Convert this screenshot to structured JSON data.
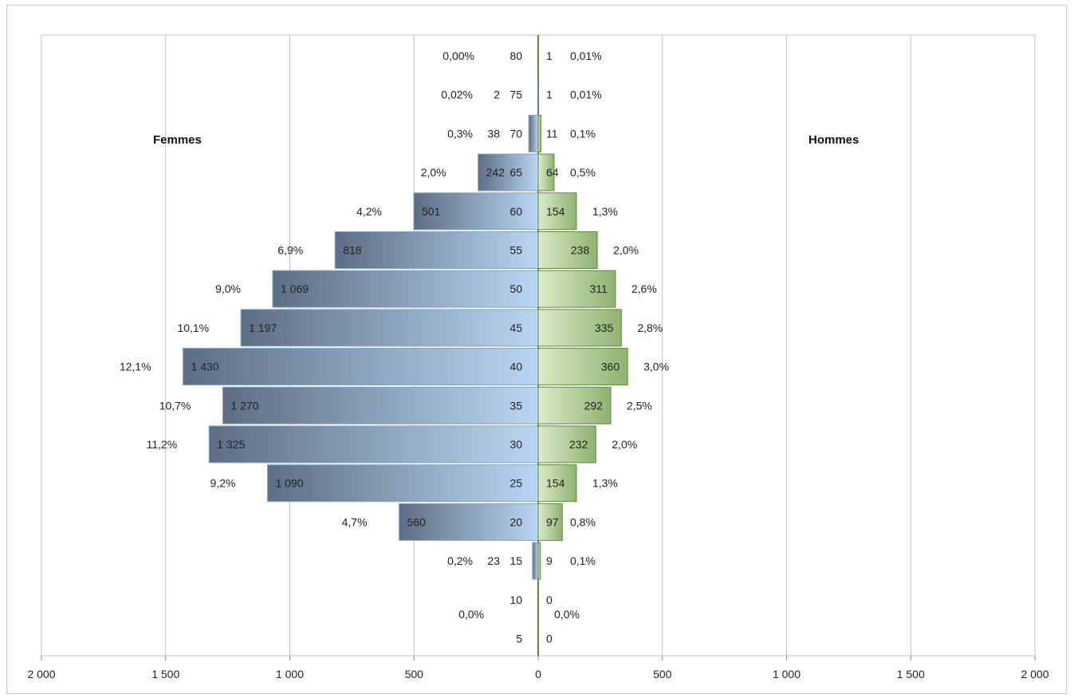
{
  "chart_data": {
    "type": "bar",
    "orientation": "horizontal-population-pyramid",
    "title": "",
    "labels": {
      "left": "Femmes",
      "right": "Hommes"
    },
    "xlim": [
      -2000,
      2000
    ],
    "x_ticks": [
      "2 000",
      "1 500",
      "1 000",
      "500",
      "0",
      "500",
      "1 000",
      "1 500",
      "2 000"
    ],
    "grid": true,
    "colors": {
      "femmes": "#a9c7e6",
      "femmes_dark": "#5d6d84",
      "hommes": "#cfe3b4",
      "hommes_dark": "#8fb270",
      "hommes_border": "#5e8a3c",
      "grid": "#c0c0c0"
    },
    "categories": [
      "80",
      "75",
      "70",
      "65",
      "60",
      "55",
      "50",
      "45",
      "40",
      "35",
      "30",
      "25",
      "20",
      "15",
      "10",
      "5"
    ],
    "series": [
      {
        "name": "Femmes",
        "values": [
          0,
          2,
          38,
          242,
          501,
          818,
          1069,
          1197,
          1430,
          1270,
          1325,
          1090,
          560,
          23,
          0,
          0
        ],
        "value_labels": [
          "",
          "2",
          "38",
          "242",
          "501",
          "818",
          "1 069",
          "1 197",
          "1 430",
          "1 270",
          "1 325",
          "1 090",
          "560",
          "23",
          "",
          ""
        ],
        "pct_labels": [
          "0,00%",
          "0,02%",
          "0,3%",
          "2,0%",
          "4,2%",
          "6,9%",
          "9,0%",
          "10,1%",
          "12,1%",
          "10,7%",
          "11,2%",
          "9,2%",
          "4,7%",
          "0,2%",
          "0,0%",
          ""
        ]
      },
      {
        "name": "Hommes",
        "values": [
          1,
          1,
          11,
          64,
          154,
          238,
          311,
          335,
          360,
          292,
          232,
          154,
          97,
          9,
          0,
          0
        ],
        "value_labels": [
          "1",
          "1",
          "11",
          "64",
          "154",
          "238",
          "311",
          "335",
          "360",
          "292",
          "232",
          "154",
          "97",
          "9",
          "0",
          "0"
        ],
        "pct_labels": [
          "0,01%",
          "0,01%",
          "0,1%",
          "0,5%",
          "1,3%",
          "2,0%",
          "2,6%",
          "2,8%",
          "3,0%",
          "2,5%",
          "2,0%",
          "1,3%",
          "0,8%",
          "0,1%",
          "0,0%",
          ""
        ]
      }
    ]
  }
}
